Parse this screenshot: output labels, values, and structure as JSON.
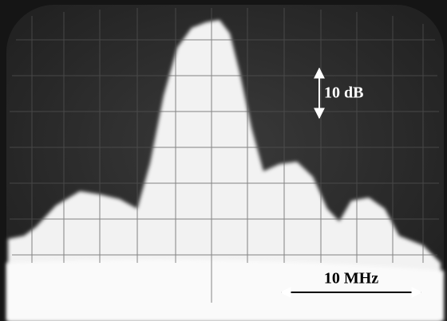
{
  "annotations": {
    "vertical_scale": "10 dB",
    "horizontal_scale": "10 MHz"
  }
}
